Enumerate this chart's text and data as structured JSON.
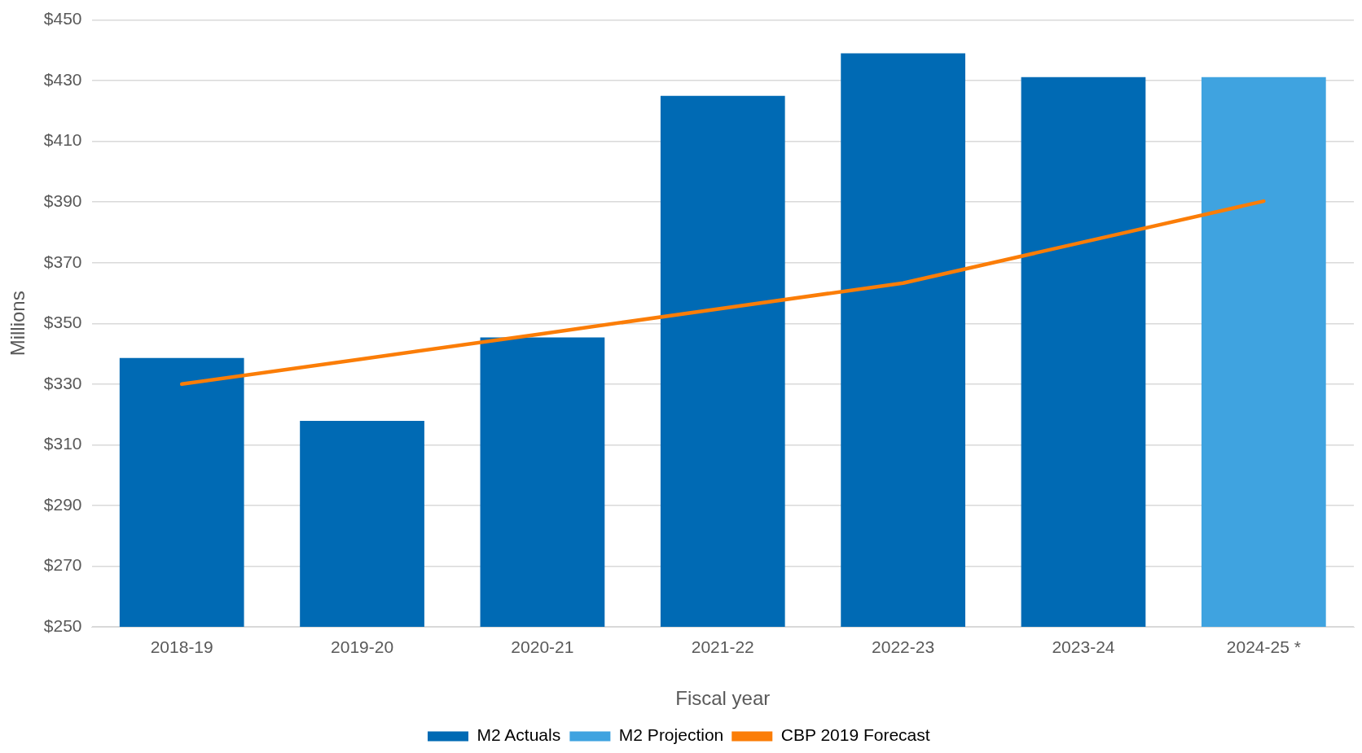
{
  "chart_data": {
    "type": "bar",
    "xlabel": "Fiscal year",
    "ylabel": "Millions",
    "categories": [
      "2018-19",
      "2019-20",
      "2020-21",
      "2021-22",
      "2022-23",
      "2023-24",
      "2024-25 *"
    ],
    "series": [
      {
        "name": "M2 Actuals",
        "color": "#006ab4",
        "values": [
          338.6,
          317.9,
          345.4,
          425,
          439,
          431.2,
          null
        ]
      },
      {
        "name": "M2 Projection",
        "color": "#3fa3e0",
        "values": [
          null,
          null,
          null,
          null,
          null,
          null,
          431.2
        ]
      },
      {
        "name": "CBP 2019 Forecast",
        "type": "line",
        "color": "#fb7d07",
        "values": [
          330,
          338.3,
          346.6,
          355,
          363.3,
          376.8,
          390.3
        ]
      }
    ],
    "ylim": [
      250,
      450
    ],
    "yticks": [
      {
        "value": 250,
        "label": "$250"
      },
      {
        "value": 270,
        "label": "$270"
      },
      {
        "value": 290,
        "label": "$290"
      },
      {
        "value": 310,
        "label": "$310"
      },
      {
        "value": 330,
        "label": "$330"
      },
      {
        "value": 350,
        "label": "$350"
      },
      {
        "value": 370,
        "label": "$370"
      },
      {
        "value": 390,
        "label": "$390"
      },
      {
        "value": 410,
        "label": "$410"
      },
      {
        "value": 430,
        "label": "$430"
      },
      {
        "value": 450,
        "label": "$450"
      }
    ],
    "grid": "y",
    "legend": "bottom",
    "marker": "none",
    "line_style": "solid"
  }
}
